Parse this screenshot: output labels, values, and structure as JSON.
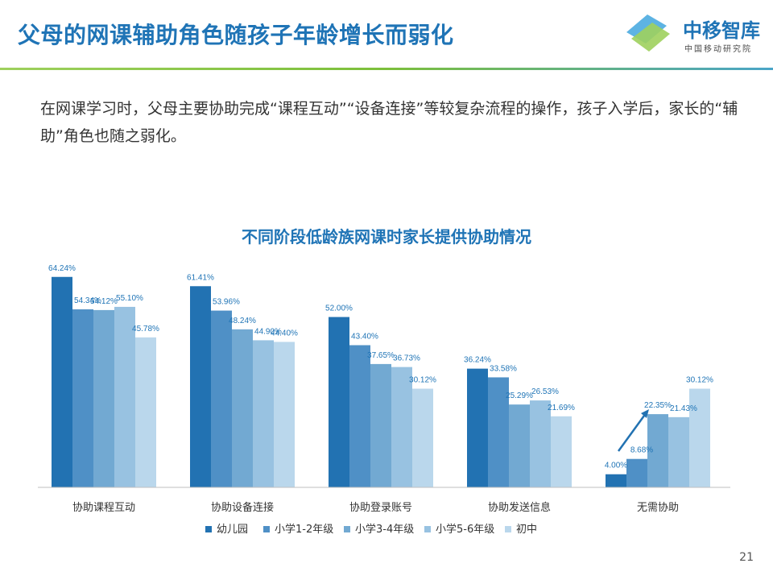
{
  "header": {
    "title": "父母的网课辅助角色随孩子年龄增长而弱化",
    "logo_text": "中移智库",
    "logo_sub": "中国移动研究院"
  },
  "intro": "在网课学习时，父母主要协助完成“课程互动”“设备连接”等较复杂流程的操作，孩子入学后，家长的“辅助”角色也随之弱化。",
  "footer": {
    "page_number": "21"
  },
  "colors": {
    "accent": "#1f74b6",
    "bar_series": [
      "#2272b2",
      "#4f90c6",
      "#72a9d2",
      "#98c2e1",
      "#bad7ec"
    ]
  },
  "chart_data": {
    "type": "bar",
    "title": "不同阶段低龄族网课时家长提供协助情况",
    "categories": [
      "协助课程互动",
      "协助设备连接",
      "协助登录账号",
      "协助发送信息",
      "无需协助"
    ],
    "series": [
      {
        "name": "幼儿园",
        "values": [
          64.24,
          61.41,
          52.0,
          36.24,
          4.0
        ],
        "labels": [
          "64.24%",
          "61.41%",
          "52.00%",
          "36.24%",
          "4.00%"
        ]
      },
      {
        "name": "小学1-2年级",
        "values": [
          54.34,
          53.96,
          43.4,
          33.58,
          8.68
        ],
        "labels": [
          "54.34%",
          "53.96%",
          "43.40%",
          "33.58%",
          "8.68%"
        ]
      },
      {
        "name": "小学3-4年级",
        "values": [
          54.12,
          48.24,
          37.65,
          25.29,
          22.35
        ],
        "labels": [
          "54.12%",
          "48.24%",
          "37.65%",
          "25.29%",
          "22.35%"
        ]
      },
      {
        "name": "小学5-6年级",
        "values": [
          55.1,
          44.9,
          36.73,
          26.53,
          21.43
        ],
        "labels": [
          "55.10%",
          "44.90%",
          "36.73%",
          "26.53%",
          "21.43%"
        ]
      },
      {
        "name": "初中",
        "values": [
          45.78,
          44.4,
          30.12,
          21.69,
          30.12
        ],
        "labels": [
          "45.78%",
          "44.40%",
          "30.12%",
          "21.69%",
          "30.12%"
        ]
      }
    ],
    "ylim": [
      0,
      75
    ],
    "legend_position": "bottom",
    "grid": false,
    "annotation": "arrow rising over 无需协助 group"
  }
}
